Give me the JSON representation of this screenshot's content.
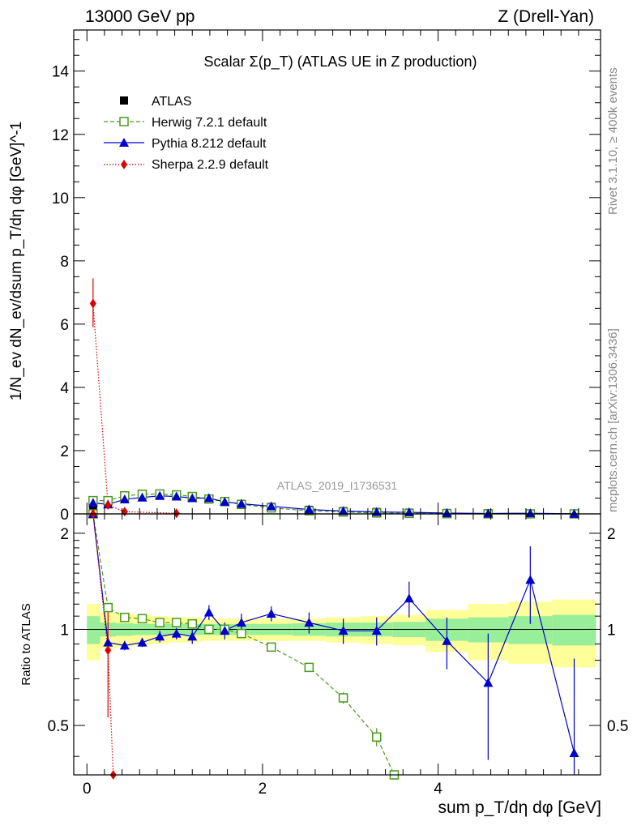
{
  "header": {
    "left": "13000 GeV pp",
    "right": "Z (Drell-Yan)"
  },
  "side_labels": {
    "rivet": "Rivet 3.1.10, ≥ 400k events",
    "mcplots": "mcplots.cern.ch [arXiv:1306.3436]"
  },
  "chart_data": [
    {
      "type": "line",
      "panel": "main",
      "title": "Scalar Σ(p_T) (ATLAS UE in Z production)",
      "watermark": "ATLAS_2019_I1736531",
      "ylabel": "1/N_ev dN_ev/dsum p_T/dη dφ [GeV]^-1",
      "xlabel": "sum p_T/dη dφ [GeV]",
      "xlim": [
        -0.15,
        5.85
      ],
      "ylim": [
        0,
        15.3
      ],
      "x_ticks": [
        0,
        2,
        4
      ],
      "y_ticks": [
        0,
        2,
        4,
        6,
        8,
        10,
        12,
        14
      ],
      "legend_position": "top-left",
      "legend": [
        "ATLAS",
        "Herwig 7.2.1 default",
        "Pythia 8.212 default",
        "Sherpa 2.2.9 default"
      ],
      "series": [
        {
          "name": "ATLAS",
          "color": "#000000",
          "marker": "square",
          "x": [
            0.07,
            0.24,
            0.43,
            0.63,
            0.83,
            1.02,
            1.2,
            1.39,
            1.57,
            1.76,
            2.1,
            2.53,
            2.92,
            3.3,
            3.67,
            4.1,
            4.57,
            5.05,
            5.55
          ],
          "y": [
            0.15,
            0.33,
            0.52,
            0.58,
            0.6,
            0.57,
            0.53,
            0.47,
            0.39,
            0.31,
            0.22,
            0.13,
            0.09,
            0.06,
            0.04,
            0.03,
            0.02,
            0.015,
            0.01
          ]
        },
        {
          "name": "Herwig 7.2.1 default",
          "color": "#4a9a1e",
          "marker": "open-square",
          "dash": "dashed",
          "x": [
            0.07,
            0.24,
            0.43,
            0.63,
            0.83,
            1.02,
            1.2,
            1.39,
            1.57,
            1.76,
            2.1,
            2.53,
            2.92,
            3.3,
            3.67,
            4.1,
            4.57,
            5.05,
            5.55
          ],
          "y": [
            0.42,
            0.42,
            0.57,
            0.62,
            0.63,
            0.6,
            0.55,
            0.47,
            0.39,
            0.3,
            0.19,
            0.1,
            0.06,
            0.03,
            0.015,
            0.007,
            0.003,
            0.001,
            0.0005
          ]
        },
        {
          "name": "Pythia 8.212 default",
          "color": "#0000cc",
          "marker": "triangle",
          "x": [
            0.07,
            0.24,
            0.43,
            0.63,
            0.83,
            1.02,
            1.2,
            1.39,
            1.57,
            1.76,
            2.1,
            2.53,
            2.92,
            3.3,
            3.67,
            4.1,
            4.57,
            5.05,
            5.55
          ],
          "y": [
            0.35,
            0.3,
            0.46,
            0.52,
            0.57,
            0.55,
            0.5,
            0.5,
            0.38,
            0.32,
            0.24,
            0.14,
            0.09,
            0.06,
            0.05,
            0.027,
            0.014,
            0.021,
            0.004
          ]
        },
        {
          "name": "Sherpa 2.2.9 default",
          "color": "#dd0000",
          "marker": "diamond",
          "dash": "dotted",
          "x": [
            0.07,
            0.24,
            0.43,
            1.02
          ],
          "y": [
            6.65,
            0.28,
            0.07,
            0.02
          ],
          "y_err_low": [
            5.9,
            0.24,
            0.05,
            0.0
          ],
          "y_err_high": [
            7.45,
            0.32,
            0.09,
            0.04
          ]
        }
      ]
    },
    {
      "type": "line",
      "panel": "ratio",
      "ylabel": "Ratio to ATLAS",
      "xlabel": "sum p_T/dη dφ [GeV]",
      "xlim": [
        -0.15,
        5.85
      ],
      "ylim": [
        0.35,
        2.3
      ],
      "x_ticks": [
        0,
        2,
        4
      ],
      "y_ticks": [
        0.5,
        1,
        2
      ],
      "band_edges": [
        0,
        0.15,
        0.33,
        0.53,
        0.73,
        0.93,
        1.12,
        1.3,
        1.48,
        1.66,
        1.86,
        2.34,
        2.72,
        3.12,
        3.48,
        3.86,
        4.34,
        4.8,
        5.3,
        5.8
      ],
      "band_stat": [
        0.1,
        0.05,
        0.045,
        0.04,
        0.04,
        0.04,
        0.04,
        0.04,
        0.04,
        0.04,
        0.04,
        0.045,
        0.05,
        0.05,
        0.055,
        0.08,
        0.09,
        0.1,
        0.11
      ],
      "band_total": [
        0.2,
        0.13,
        0.12,
        0.11,
        0.1,
        0.09,
        0.09,
        0.08,
        0.08,
        0.08,
        0.08,
        0.08,
        0.09,
        0.1,
        0.11,
        0.15,
        0.2,
        0.22,
        0.24
      ],
      "series": [
        {
          "name": "Herwig 7.2.1 default",
          "color": "#4a9a1e",
          "marker": "open-square",
          "dash": "dashed",
          "x": [
            0.07,
            0.24,
            0.43,
            0.63,
            0.83,
            1.02,
            1.2,
            1.39,
            1.57,
            1.76,
            2.1,
            2.53,
            2.92,
            3.3,
            3.5
          ],
          "y": [
            2.3,
            1.17,
            1.09,
            1.08,
            1.05,
            1.05,
            1.04,
            1.0,
            1.0,
            0.97,
            0.88,
            0.76,
            0.61,
            0.46,
            0.35
          ],
          "y_err": [
            0,
            0.02,
            0.02,
            0.02,
            0.02,
            0.02,
            0.02,
            0.02,
            0.02,
            0.02,
            0.02,
            0.02,
            0.025,
            0.03,
            0
          ]
        },
        {
          "name": "Pythia 8.212 default",
          "color": "#0000cc",
          "marker": "triangle",
          "x": [
            0.07,
            0.24,
            0.43,
            0.63,
            0.83,
            1.02,
            1.2,
            1.39,
            1.57,
            1.76,
            2.1,
            2.53,
            2.92,
            3.3,
            3.67,
            4.1,
            4.57,
            5.05,
            5.55
          ],
          "y": [
            2.3,
            0.91,
            0.89,
            0.91,
            0.95,
            0.97,
            0.95,
            1.13,
            0.99,
            1.05,
            1.12,
            1.05,
            0.99,
            0.99,
            1.25,
            0.92,
            0.68,
            1.43,
            0.41
          ],
          "y_err": [
            0,
            0.04,
            0.03,
            0.03,
            0.04,
            0.04,
            0.05,
            0.06,
            0.06,
            0.07,
            0.06,
            0.08,
            0.09,
            0.1,
            0.16,
            0.17,
            0.29,
            0.39,
            0.4
          ]
        },
        {
          "name": "Sherpa 2.2.9 default",
          "color": "#dd0000",
          "marker": "diamond",
          "dash": "dotted",
          "x": [
            0.07,
            0.24,
            0.3
          ],
          "y": [
            2.3,
            0.86,
            0.35
          ],
          "y_err_low": [
            0,
            0.53,
            0
          ],
          "y_err_high": [
            0,
            1.15,
            0
          ]
        }
      ]
    }
  ]
}
